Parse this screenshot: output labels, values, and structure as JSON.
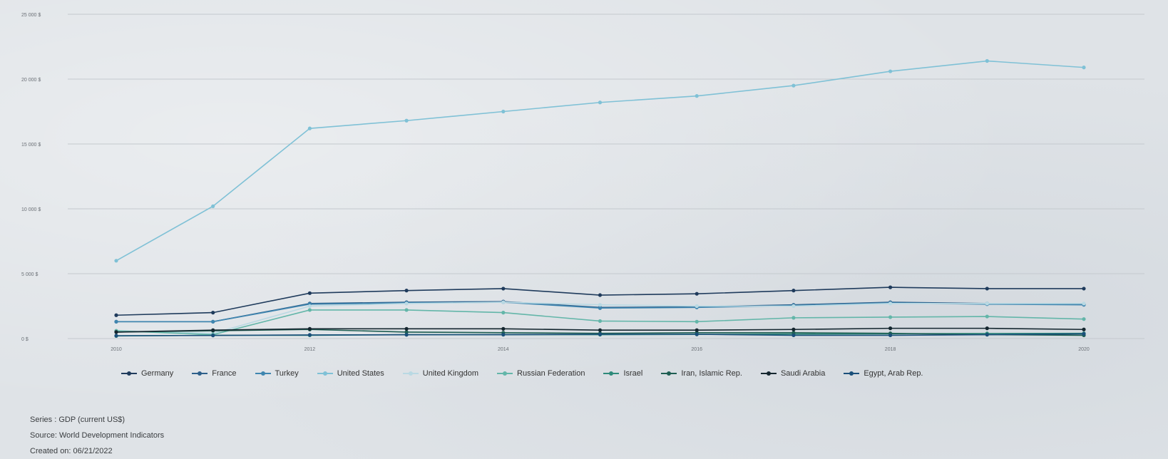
{
  "chart_data": {
    "type": "line",
    "x": [
      2010,
      2011,
      2012,
      2013,
      2014,
      2015,
      2016,
      2017,
      2018,
      2019,
      2020
    ],
    "x_tick_labels": [
      "2010",
      "",
      "2012",
      "",
      "2014",
      "",
      "2016",
      "",
      "2018",
      "",
      "2020"
    ],
    "y_tick_labels": [
      "0 $",
      "5 000 $",
      "10 000 $",
      "15 000 $",
      "20 000 $",
      "25 000 $"
    ],
    "ylim": [
      0,
      25000
    ],
    "grid": true,
    "legend_position": "bottom",
    "series": [
      {
        "name": "Germany",
        "color": "#1f3b5c",
        "values": [
          1800,
          2000,
          3500,
          3700,
          3850,
          3350,
          3450,
          3700,
          3950,
          3850,
          3850
        ]
      },
      {
        "name": "France",
        "color": "#2d5f8a",
        "values": [
          1300,
          1300,
          2700,
          2800,
          2850,
          2400,
          2450,
          2600,
          2800,
          2700,
          2650
        ]
      },
      {
        "name": "Turkey",
        "color": "#3f86b0",
        "values": [
          1300,
          1300,
          2650,
          2750,
          2800,
          2350,
          2400,
          2550,
          2750,
          2650,
          2600
        ]
      },
      {
        "name": "United States",
        "color": "#7fc1d6",
        "values": [
          6000,
          10200,
          16200,
          16800,
          17500,
          18200,
          18700,
          19500,
          20600,
          21400,
          20900
        ]
      },
      {
        "name": "United Kingdom",
        "color": "#b9d9e3",
        "values": [
          600,
          400,
          2500,
          2700,
          2800,
          2600,
          2500,
          2500,
          2700,
          2700,
          2700
        ]
      },
      {
        "name": "Russian Federation",
        "color": "#63b6a9",
        "values": [
          600,
          300,
          2200,
          2200,
          2000,
          1350,
          1300,
          1600,
          1650,
          1700,
          1500
        ]
      },
      {
        "name": "Israel",
        "color": "#2e8a7a",
        "values": [
          200,
          250,
          250,
          300,
          300,
          300,
          320,
          350,
          370,
          390,
          400
        ]
      },
      {
        "name": "Iran, Islamic Rep.",
        "color": "#1e5e52",
        "values": [
          500,
          600,
          700,
          500,
          450,
          400,
          450,
          450,
          400,
          300,
          250
        ]
      },
      {
        "name": "Saudi Arabia",
        "color": "#14262f",
        "values": [
          500,
          650,
          750,
          750,
          750,
          650,
          650,
          700,
          790,
          790,
          700
        ]
      },
      {
        "name": "Egypt, Arab Rep.",
        "color": "#1a4f7a",
        "values": [
          220,
          240,
          280,
          290,
          300,
          330,
          330,
          250,
          250,
          300,
          360
        ]
      }
    ]
  },
  "footer": {
    "series_label": "Series : GDP (current US$)",
    "source_label": "Source: World Development Indicators",
    "created_label": "Created on: 06/21/2022"
  }
}
